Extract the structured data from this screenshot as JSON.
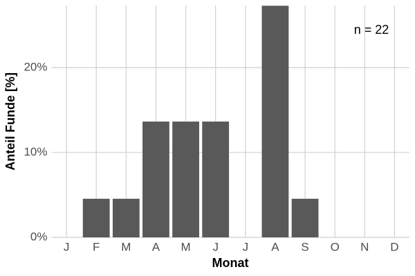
{
  "chart_data": {
    "type": "bar",
    "x_label": "Monat",
    "y_label": "Anteil Funde [%]",
    "annotation": "n = 22",
    "categories": [
      "J",
      "F",
      "M",
      "A",
      "M",
      "J",
      "J",
      "A",
      "S",
      "O",
      "N",
      "D"
    ],
    "values": [
      0,
      4.545,
      4.545,
      13.636,
      13.636,
      13.636,
      0,
      27.273,
      4.545,
      0,
      0,
      0
    ],
    "color": "#595959",
    "ylim": [
      0,
      27.3
    ],
    "yticks": [
      {
        "value": 0,
        "label": "0%"
      },
      {
        "value": 10,
        "label": "10%"
      },
      {
        "value": 20,
        "label": "20%"
      }
    ],
    "grid": true
  }
}
